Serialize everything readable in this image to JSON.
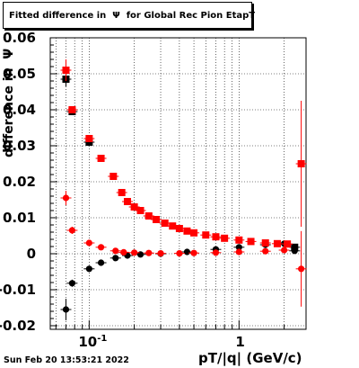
{
  "header": {
    "title": "Fitted difference in  Ψ  for Global Rec Pion EtapT",
    "date": "Sun Feb 20 13:53:21 2022"
  },
  "colors": {
    "series_black": "#000000",
    "series_red": "#ff0000",
    "grid": "#000000",
    "background": "#ffffff"
  },
  "chart_data": {
    "type": "scatter",
    "title": "Fitted difference in  Ψ  for Global Rec Pion EtapT",
    "xlabel": "pT/|q| (GeV/c)",
    "ylabel": "difference in  Ψ",
    "xscale": "log",
    "xlim": [
      0.055,
      2.8
    ],
    "ylim": [
      -0.021,
      0.06
    ],
    "grid": true,
    "y_ticks": [
      "0.06",
      "0.05",
      "0.04",
      "0.03",
      "0.02",
      "0.01",
      "0",
      "-0.01",
      "-0.02"
    ],
    "x_tick_labels": [
      {
        "value": 0.1,
        "label": "10",
        "exp": "-1"
      },
      {
        "value": 1,
        "label": "1",
        "exp": ""
      }
    ],
    "series": [
      {
        "color": "black",
        "marker": "circle",
        "points": [
          {
            "x": 0.07,
            "y": -0.0155,
            "err": 0.003
          },
          {
            "x": 0.077,
            "y": -0.0082,
            "err": 0.001
          },
          {
            "x": 0.1,
            "y": -0.0042,
            "err": 0.0008
          },
          {
            "x": 0.12,
            "y": -0.0025,
            "err": 0.0005
          },
          {
            "x": 0.15,
            "y": -0.0012,
            "err": 0.0003
          },
          {
            "x": 0.18,
            "y": -0.0005
          },
          {
            "x": 0.22,
            "y": -0.0002
          },
          {
            "x": 0.3,
            "y": 0.0
          },
          {
            "x": 0.45,
            "y": 0.0005
          },
          {
            "x": 0.7,
            "y": 0.0012
          },
          {
            "x": 1.0,
            "y": 0.0018
          },
          {
            "x": 1.5,
            "y": 0.0025
          },
          {
            "x": 2.0,
            "y": 0.0028
          },
          {
            "x": 2.35,
            "y": 0.0008
          }
        ]
      },
      {
        "color": "black",
        "marker": "square",
        "points": [
          {
            "x": 0.07,
            "y": 0.0485,
            "err": 0.002
          },
          {
            "x": 0.077,
            "y": 0.0395
          },
          {
            "x": 0.1,
            "y": 0.031
          },
          {
            "x": 2.35,
            "y": 0.0018
          }
        ]
      },
      {
        "color": "red",
        "marker": "circle",
        "points": [
          {
            "x": 0.07,
            "y": 0.0155,
            "err": 0.002
          },
          {
            "x": 0.077,
            "y": 0.0065,
            "err": 0.001
          },
          {
            "x": 0.1,
            "y": 0.003
          },
          {
            "x": 0.12,
            "y": 0.0018
          },
          {
            "x": 0.15,
            "y": 0.0008
          },
          {
            "x": 0.17,
            "y": 0.0004
          },
          {
            "x": 0.2,
            "y": 0.0003
          },
          {
            "x": 0.25,
            "y": 0.0002
          },
          {
            "x": 0.3,
            "y": 0.0001
          },
          {
            "x": 0.4,
            "y": 0.0001
          },
          {
            "x": 0.5,
            "y": 0.0002
          },
          {
            "x": 0.7,
            "y": 0.0003
          },
          {
            "x": 1.0,
            "y": 0.0005
          },
          {
            "x": 1.5,
            "y": 0.0007
          },
          {
            "x": 2.0,
            "y": 0.001
          },
          {
            "x": 2.6,
            "y": -0.0042,
            "err": 0.0105
          }
        ]
      },
      {
        "color": "red",
        "marker": "square",
        "points": [
          {
            "x": 0.07,
            "y": 0.051,
            "err": 0.003
          },
          {
            "x": 0.077,
            "y": 0.04
          },
          {
            "x": 0.1,
            "y": 0.032
          },
          {
            "x": 0.12,
            "y": 0.0265
          },
          {
            "x": 0.145,
            "y": 0.0215
          },
          {
            "x": 0.165,
            "y": 0.017
          },
          {
            "x": 0.18,
            "y": 0.0145
          },
          {
            "x": 0.2,
            "y": 0.013
          },
          {
            "x": 0.22,
            "y": 0.012
          },
          {
            "x": 0.25,
            "y": 0.0105
          },
          {
            "x": 0.28,
            "y": 0.0095
          },
          {
            "x": 0.32,
            "y": 0.0085
          },
          {
            "x": 0.36,
            "y": 0.0077
          },
          {
            "x": 0.4,
            "y": 0.007
          },
          {
            "x": 0.45,
            "y": 0.0063
          },
          {
            "x": 0.5,
            "y": 0.0058
          },
          {
            "x": 0.6,
            "y": 0.0052
          },
          {
            "x": 0.7,
            "y": 0.0047
          },
          {
            "x": 0.8,
            "y": 0.0043
          },
          {
            "x": 1.0,
            "y": 0.0038
          },
          {
            "x": 1.2,
            "y": 0.0034
          },
          {
            "x": 1.5,
            "y": 0.003
          },
          {
            "x": 1.8,
            "y": 0.0028
          },
          {
            "x": 2.1,
            "y": 0.0027
          },
          {
            "x": 2.6,
            "y": 0.025,
            "err": 0.0175
          }
        ]
      }
    ]
  }
}
